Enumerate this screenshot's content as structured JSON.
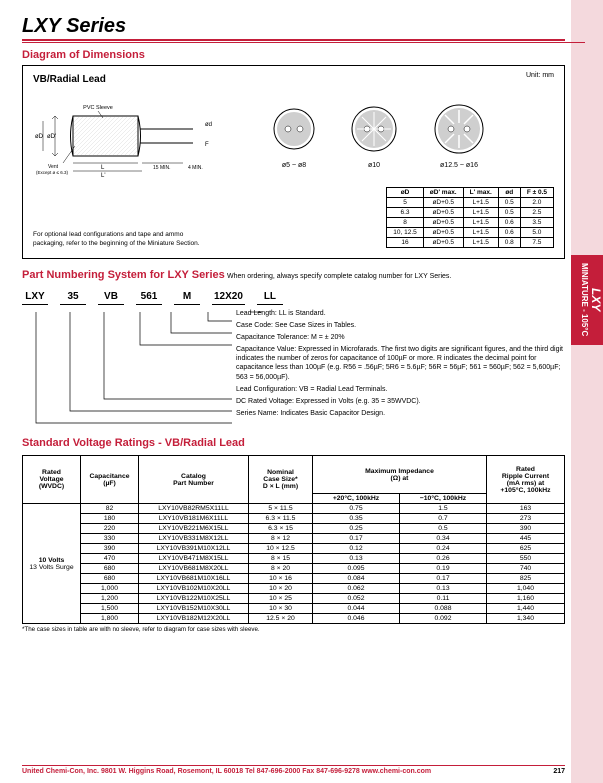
{
  "title": "LXY Series",
  "section1": "Diagram of Dimensions",
  "boxTitle": "VB/Radial Lead",
  "unitLabel": "Unit: mm",
  "diagramLabels": {
    "pvcSleeve": "PVC Sleeve",
    "vent": "Vent\n(Except ø ≤ 6.3)",
    "min15": "15 MIN.",
    "min4": "4 MIN.",
    "circ1": "ø5 ~ ø8",
    "circ2": "ø10",
    "circ3": "ø12.5 ~ ø16"
  },
  "dimTable": {
    "headers": [
      "øD",
      "øD' max.",
      "L' max.",
      "ød",
      "F ± 0.5"
    ],
    "rows": [
      [
        "5",
        "øD+0.5",
        "L+1.5",
        "0.5",
        "2.0"
      ],
      [
        "6.3",
        "øD+0.5",
        "L+1.5",
        "0.5",
        "2.5"
      ],
      [
        "8",
        "øD+0.5",
        "L+1.5",
        "0.6",
        "3.5"
      ],
      [
        "10, 12.5",
        "øD+0.5",
        "L+1.5",
        "0.6",
        "5.0"
      ],
      [
        "16",
        "øD+0.5",
        "L+1.5",
        "0.8",
        "7.5"
      ]
    ]
  },
  "dimNote": "For optional lead configurations and tape and ammo packaging, refer to the beginning of the Miniature Section.",
  "pnTitle": "Part Numbering System for LXY Series",
  "pnInline": "When ordering, always specify complete catalog number for LXY Series.",
  "pnCells": [
    "LXY",
    "35",
    "VB",
    "561",
    "M",
    "12X20",
    "LL"
  ],
  "pnDesc": [
    "Lead Length: LL is Standard.",
    "Case Code: See Case Sizes in Tables.",
    "Capacitance Tolerance: M = ± 20%",
    "Capacitance Value: Expressed in Microfarads. The first two digits are significant figures, and the third digit indicates the number of zeros for capacitance of 100µF or more. R indicates the decimal point for capacitance less than 100µF (e.g. R56 = .56µF; 5R6 = 5.6µF; 56R = 56µF; 561 = 560µF; 562 = 5,600µF; 563 = 56,000µF).",
    "Lead Configuration: VB = Radial Lead Terminals.",
    "DC Rated Voltage: Expressed in Volts (e.g. 35 = 35WVDC).",
    "Series Name: Indicates Basic Capacitor Design."
  ],
  "ratingsTitle": "Standard Voltage Ratings - VB/Radial Lead",
  "ratingsHeaders": {
    "c1": "Rated\nVoltage\n(WVDC)",
    "c2": "Capacitance\n(µF)",
    "c3": "Catalog\nPart Number",
    "c4": "Nominal\nCase Size*\nD × L (mm)",
    "c5": "Maximum Impedance\n(Ω) at",
    "c5a": "+20°C, 100kHz",
    "c5b": "−10°C, 100kHz",
    "c6": "Rated\nRipple Current\n(mA rms) at\n+105°C, 100kHz"
  },
  "ratingsVolt": {
    "main": "10 Volts",
    "sub": "13 Volts Surge"
  },
  "ratingsRows": [
    [
      "82",
      "LXY10VB82RM5X11LL",
      "5 × 11.5",
      "0.75",
      "1.5",
      "163"
    ],
    [
      "180",
      "LXY10VB181M6X11LL",
      "6.3 × 11.5",
      "0.35",
      "0.7",
      "273"
    ],
    [
      "220",
      "LXY10VB221M6X15LL",
      "6.3 × 15",
      "0.25",
      "0.5",
      "390"
    ],
    [
      "330",
      "LXY10VB331M8X12LL",
      "8 × 12",
      "0.17",
      "0.34",
      "445"
    ],
    [
      "390",
      "LXY10VB391M10X12LL",
      "10 × 12.5",
      "0.12",
      "0.24",
      "625"
    ],
    [
      "470",
      "LXY10VB471M8X15LL",
      "8 × 15",
      "0.13",
      "0.26",
      "550"
    ],
    [
      "680",
      "LXY10VB681M8X20LL",
      "8 × 20",
      "0.095",
      "0.19",
      "740"
    ],
    [
      "680",
      "LXY10VB681M10X16LL",
      "10 × 16",
      "0.084",
      "0.17",
      "825"
    ],
    [
      "1,000",
      "LXY10VB102M10X20LL",
      "10 × 20",
      "0.062",
      "0.13",
      "1,040"
    ],
    [
      "1,200",
      "LXY10VB122M10X25LL",
      "10 × 25",
      "0.052",
      "0.11",
      "1,160"
    ],
    [
      "1,500",
      "LXY10VB152M10X30LL",
      "10 × 30",
      "0.044",
      "0.088",
      "1,440"
    ],
    [
      "1,800",
      "LXY10VB182M12X20LL",
      "12.5 × 20",
      "0.046",
      "0.092",
      "1,340"
    ]
  ],
  "footnote": "*The case sizes in table are with no sleeve, refer to diagram for case sizes with sleeve.",
  "footer": {
    "left": "United Chemi-Con, Inc.  9801 W. Higgins Road, Rosemont, IL 60018   Tel 847-696-2000   Fax 847-696-9278   www.chemi-con.com",
    "page": "217"
  },
  "sideTab": {
    "big": "LXY",
    "small": "MINIATURE - 105°C"
  }
}
